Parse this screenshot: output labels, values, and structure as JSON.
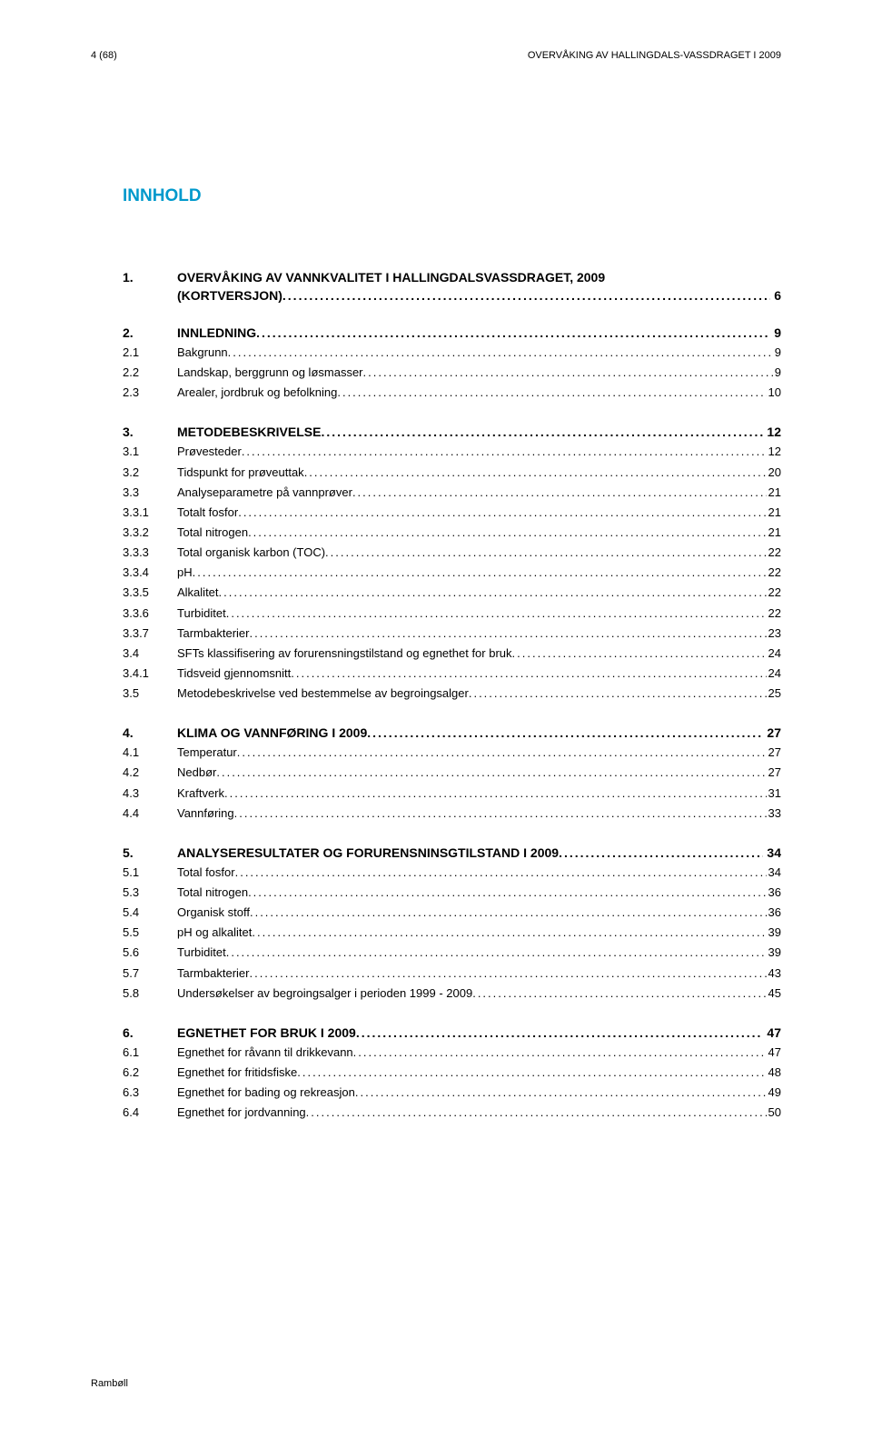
{
  "header": {
    "left": "4 (68)",
    "right": "OVERVÅKING AV HALLINGDALS-VASSDRAGET I 2009"
  },
  "title": "INNHOLD",
  "sections": [
    {
      "num": "1.",
      "title": "OVERVÅKING AV VANNKVALITET I HALLINGDALSVASSDRAGET, 2009 (KORTVERSJON)",
      "page": "6",
      "continuation": true,
      "entries": []
    },
    {
      "num": "2.",
      "title": "INNLEDNING",
      "page": "9",
      "entries": [
        {
          "num": "2.1",
          "label": "Bakgrunn",
          "page": "9"
        },
        {
          "num": "2.2",
          "label": "Landskap, berggrunn og løsmasser",
          "page": "9"
        },
        {
          "num": "2.3",
          "label": "Arealer, jordbruk og befolkning",
          "page": "10"
        }
      ]
    },
    {
      "num": "3.",
      "title": "METODEBESKRIVELSE",
      "page": "12",
      "entries": [
        {
          "num": "3.1",
          "label": "Prøvesteder",
          "page": "12"
        },
        {
          "num": "3.2",
          "label": "Tidspunkt for prøveuttak",
          "page": "20"
        },
        {
          "num": "3.3",
          "label": "Analyseparametre på vannprøver",
          "page": "21"
        },
        {
          "num": "3.3.1",
          "label": "Totalt fosfor",
          "page": "21"
        },
        {
          "num": "3.3.2",
          "label": "Total nitrogen",
          "page": "21"
        },
        {
          "num": "3.3.3",
          "label": "Total organisk karbon (TOC)",
          "page": "22"
        },
        {
          "num": "3.3.4",
          "label": "pH",
          "page": "22"
        },
        {
          "num": "3.3.5",
          "label": "Alkalitet",
          "page": "22"
        },
        {
          "num": "3.3.6",
          "label": "Turbiditet",
          "page": "22"
        },
        {
          "num": "3.3.7",
          "label": "Tarmbakterier",
          "page": "23"
        },
        {
          "num": "3.4",
          "label": "SFTs klassifisering av forurensningstilstand og egnethet for bruk",
          "page": "24"
        },
        {
          "num": "3.4.1",
          "label": "Tidsveid gjennomsnitt",
          "page": "24"
        },
        {
          "num": "3.5",
          "label": "Metodebeskrivelse ved bestemmelse av begroingsalger",
          "page": "25"
        }
      ]
    },
    {
      "num": "4.",
      "title": "KLIMA OG VANNFØRING I 2009",
      "page": "27",
      "entries": [
        {
          "num": "4.1",
          "label": "Temperatur",
          "page": "27"
        },
        {
          "num": "4.2",
          "label": "Nedbør",
          "page": "27"
        },
        {
          "num": "4.3",
          "label": "Kraftverk",
          "page": "31"
        },
        {
          "num": "4.4",
          "label": "Vannføring",
          "page": "33"
        }
      ]
    },
    {
      "num": "5.",
      "title": "ANALYSERESULTATER OG FORURENSNINSGTILSTAND I 2009",
      "page": "34",
      "entries": [
        {
          "num": "5.1",
          "label": "Total fosfor",
          "page": "34"
        },
        {
          "num": "5.3",
          "label": "Total nitrogen",
          "page": "36"
        },
        {
          "num": "5.4",
          "label": "Organisk stoff",
          "page": "36"
        },
        {
          "num": "5.5",
          "label": "pH og alkalitet",
          "page": "39"
        },
        {
          "num": "5.6",
          "label": "Turbiditet",
          "page": "39"
        },
        {
          "num": "5.7",
          "label": "Tarmbakterier",
          "page": "43"
        },
        {
          "num": "5.8",
          "label": "Undersøkelser av begroingsalger i perioden 1999 - 2009",
          "page": "45"
        }
      ]
    },
    {
      "num": "6.",
      "title": "EGNETHET FOR BRUK I 2009",
      "page": "47",
      "entries": [
        {
          "num": "6.1",
          "label": "Egnethet for råvann til drikkevann",
          "page": "47"
        },
        {
          "num": "6.2",
          "label": "Egnethet for fritidsfiske",
          "page": "48"
        },
        {
          "num": "6.3",
          "label": "Egnethet for bading og rekreasjon",
          "page": "49"
        },
        {
          "num": "6.4",
          "label": "Egnethet for jordvanning",
          "page": "50"
        }
      ]
    }
  ],
  "footer": "Rambøll",
  "styling": {
    "title_color": "#0099cc",
    "text_color": "#000000",
    "background_color": "#ffffff",
    "title_fontsize": 19,
    "heading_fontsize": 14,
    "entry_fontsize": 13,
    "header_fontsize": 11
  }
}
